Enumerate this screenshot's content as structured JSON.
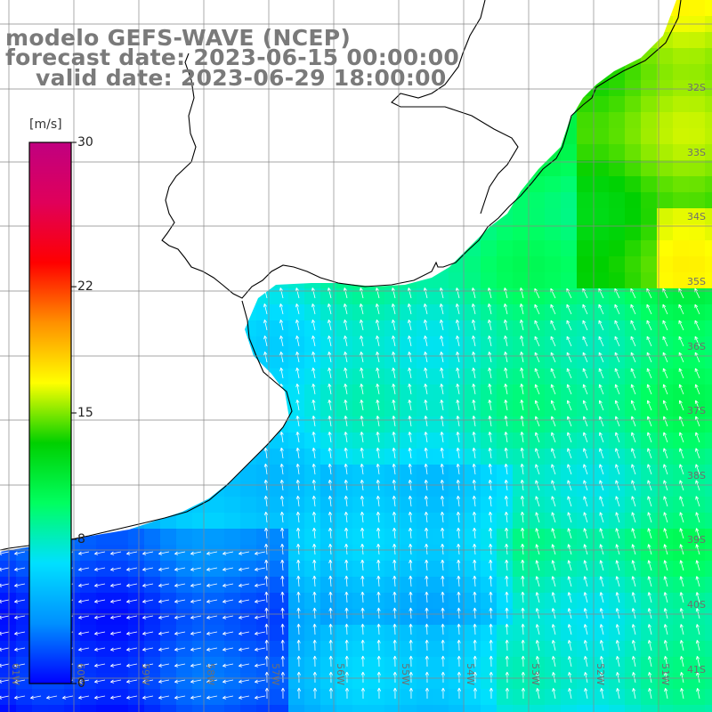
{
  "title": {
    "line1": "modelo GEFS-WAVE (NCEP)",
    "line2": "forecast date: 2023-06-15 00:00:00",
    "line3": "valid date: 2023-06-29 18:00:00"
  },
  "colorbar": {
    "unit": "[m/s]",
    "min": 0,
    "max": 30,
    "ticks": [
      {
        "value": 30,
        "label": "30"
      },
      {
        "value": 22,
        "label": "22"
      },
      {
        "value": 15,
        "label": "15"
      },
      {
        "value": 8,
        "label": "8"
      },
      {
        "value": 0,
        "label": "0"
      }
    ],
    "colors": [
      "#0000ff",
      "#0090ff",
      "#00e0ff",
      "#00ff60",
      "#00d000",
      "#ffff00",
      "#ff9000",
      "#ff0000",
      "#e0005a",
      "#c00080"
    ]
  },
  "map": {
    "grid_line_color": "#888888",
    "coastline_color": "#000000",
    "arrow_color": "#ffffff",
    "land_color": "#ffffff",
    "lat_labels": [
      "32S",
      "33S",
      "34S",
      "35S",
      "36S",
      "37S",
      "38S",
      "39S",
      "40S",
      "41S"
    ],
    "lon_labels": [
      "61W",
      "60W",
      "59W",
      "58W",
      "57W",
      "56W",
      "55W",
      "54W",
      "53W",
      "52W",
      "51W"
    ],
    "wind_direction": "from south-east",
    "wind_field_note": ""
  }
}
